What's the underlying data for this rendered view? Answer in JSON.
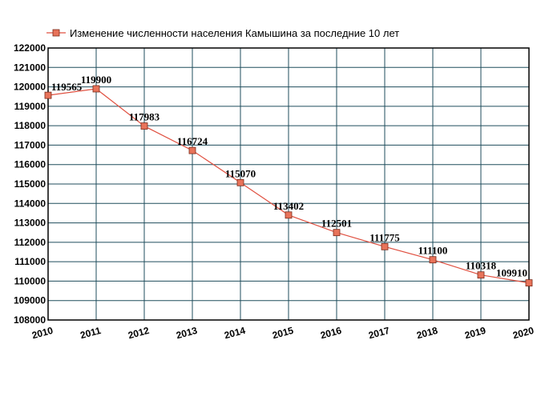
{
  "chart_data": {
    "type": "line",
    "title": "",
    "xlabel": "",
    "ylabel": "",
    "x": [
      "2010",
      "2011",
      "2012",
      "2013",
      "2014",
      "2015",
      "2016",
      "2017",
      "2018",
      "2019",
      "2020"
    ],
    "series": [
      {
        "name": "Изменение численности населения Камышина за последние 10 лет",
        "values": [
          119565,
          119900,
          117983,
          116724,
          115070,
          113402,
          112501,
          111775,
          111100,
          110318,
          109910
        ]
      }
    ],
    "ylim": [
      108000,
      122000
    ],
    "y_ticks": [
      "108000",
      "109000",
      "110000",
      "111000",
      "112000",
      "113000",
      "114000",
      "115000",
      "116000",
      "117000",
      "118000",
      "119000",
      "120000",
      "121000",
      "122000"
    ],
    "data_labels": [
      "119565",
      "119900",
      "117983",
      "116724",
      "115070",
      "113402",
      "112501",
      "111775",
      "111100",
      "110318",
      "109910"
    ],
    "grid": true,
    "legend_position": "top",
    "colors": {
      "line": "#e05040",
      "marker_fill": "#e8735a",
      "marker_stroke": "#7a2a1a",
      "grid": "#1f4d5c",
      "axis": "#000000"
    }
  }
}
